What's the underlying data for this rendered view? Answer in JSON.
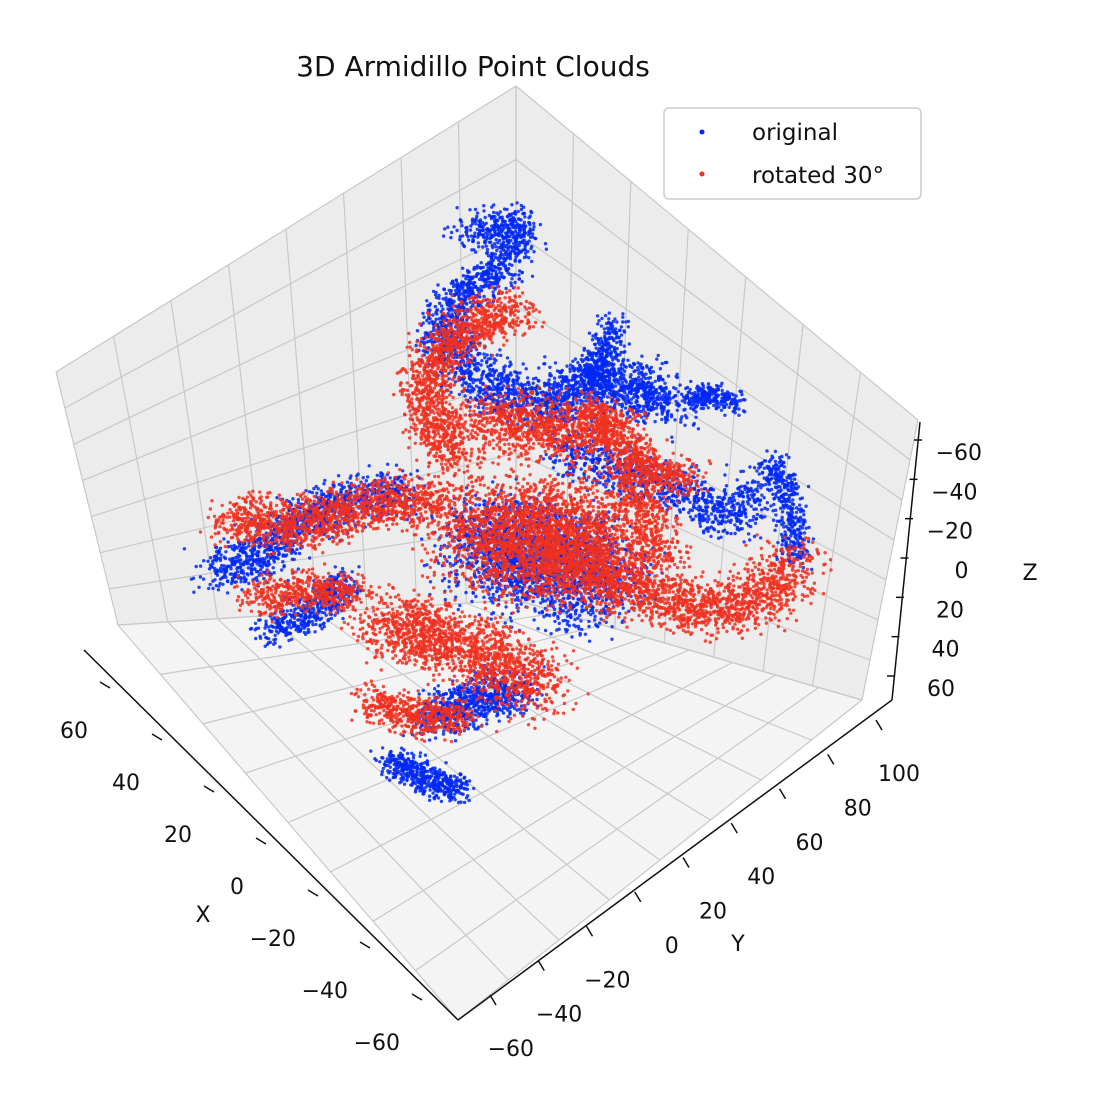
{
  "chart_data": {
    "type": "scatter",
    "projection": "3d",
    "title": "3D Armidillo Point Clouds",
    "xlabel": "X",
    "ylabel": "Y",
    "zlabel": "Z",
    "x_ticks": [
      "60",
      "40",
      "20",
      "0",
      "−20",
      "−40",
      "−60"
    ],
    "y_ticks": [
      "100",
      "80",
      "60",
      "40",
      "20",
      "0",
      "−20",
      "−40",
      "−60"
    ],
    "z_ticks": [
      "−60",
      "−40",
      "−20",
      "0",
      "20",
      "40",
      "60"
    ],
    "xlim": [
      -70,
      70
    ],
    "ylim": [
      -65,
      110
    ],
    "zlim": [
      -70,
      70
    ],
    "grid": true,
    "legend_position": "top-right",
    "series": [
      {
        "name": "original",
        "color": "#0028f5",
        "shape": "armadillo",
        "rotation_deg": 0
      },
      {
        "name": "rotated 30°",
        "color": "#f03020",
        "shape": "armadillo",
        "rotation_deg": 30
      }
    ]
  }
}
